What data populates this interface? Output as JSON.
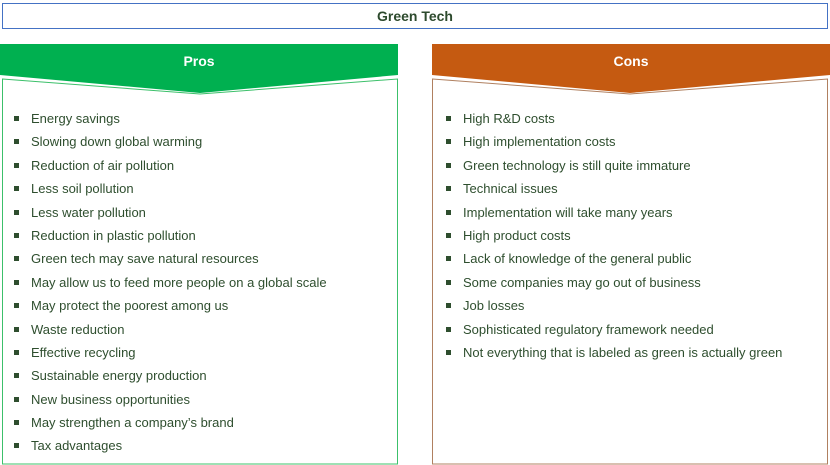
{
  "title": "Green Tech",
  "colors": {
    "pros": "#00b050",
    "cons": "#c55a11",
    "title_border": "#4472c4",
    "text": "#2e4e2e"
  },
  "pros": {
    "label": "Pros",
    "items": [
      "Energy savings",
      "Slowing down global warming",
      "Reduction of air pollution",
      "Less soil pollution",
      "Less water pollution",
      "Reduction in plastic pollution",
      "Green tech may save natural resources",
      "May allow us to feed more people on a global scale",
      "May protect the poorest among us",
      "Waste reduction",
      "Effective recycling",
      "Sustainable energy production",
      "New business opportunities",
      "May strengthen a company’s brand",
      "Tax advantages"
    ]
  },
  "cons": {
    "label": "Cons",
    "items": [
      "High R&D costs",
      "High implementation costs",
      "Green technology is still quite immature",
      "Technical issues",
      "Implementation will take many years",
      "High product costs",
      "Lack of knowledge of the general public",
      "Some companies may go out of business",
      "Job losses",
      "Sophisticated regulatory framework needed",
      "Not everything that is labeled as green is actually green"
    ]
  }
}
